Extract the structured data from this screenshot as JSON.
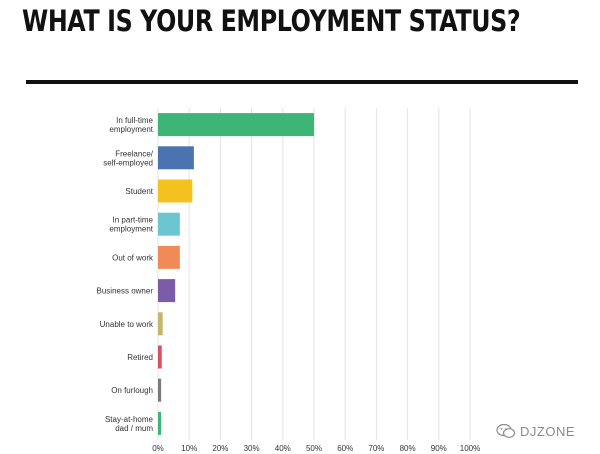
{
  "title": "WHAT IS YOUR EMPLOYMENT STATUS?",
  "watermark": "DJZONE",
  "chart_data": {
    "type": "bar",
    "orientation": "horizontal",
    "categories": [
      [
        "In full-time",
        "employment"
      ],
      [
        "Freelance/",
        "self-employed"
      ],
      [
        "Student"
      ],
      [
        "In part-time",
        "employment"
      ],
      [
        "Out of work"
      ],
      [
        "Business owner"
      ],
      [
        "Unable to work"
      ],
      [
        "Retired"
      ],
      [
        "On furlough"
      ],
      [
        "Stay-at-home",
        "dad / mum"
      ]
    ],
    "values": [
      50,
      11.5,
      11,
      7,
      7,
      5.5,
      1.5,
      1.2,
      1,
      1
    ],
    "colors": [
      "#3db577",
      "#4a73b0",
      "#f4c21f",
      "#6cc6d1",
      "#f08b57",
      "#7c5ca8",
      "#c7b56e",
      "#dd4f5e",
      "#7b7b7b",
      "#3db577"
    ],
    "xlim": [
      0,
      100
    ],
    "xticks": [
      "0%",
      "10%",
      "20%",
      "30%",
      "40%",
      "50%",
      "60%",
      "70%",
      "80%",
      "90%",
      "100%"
    ],
    "grid": true
  }
}
